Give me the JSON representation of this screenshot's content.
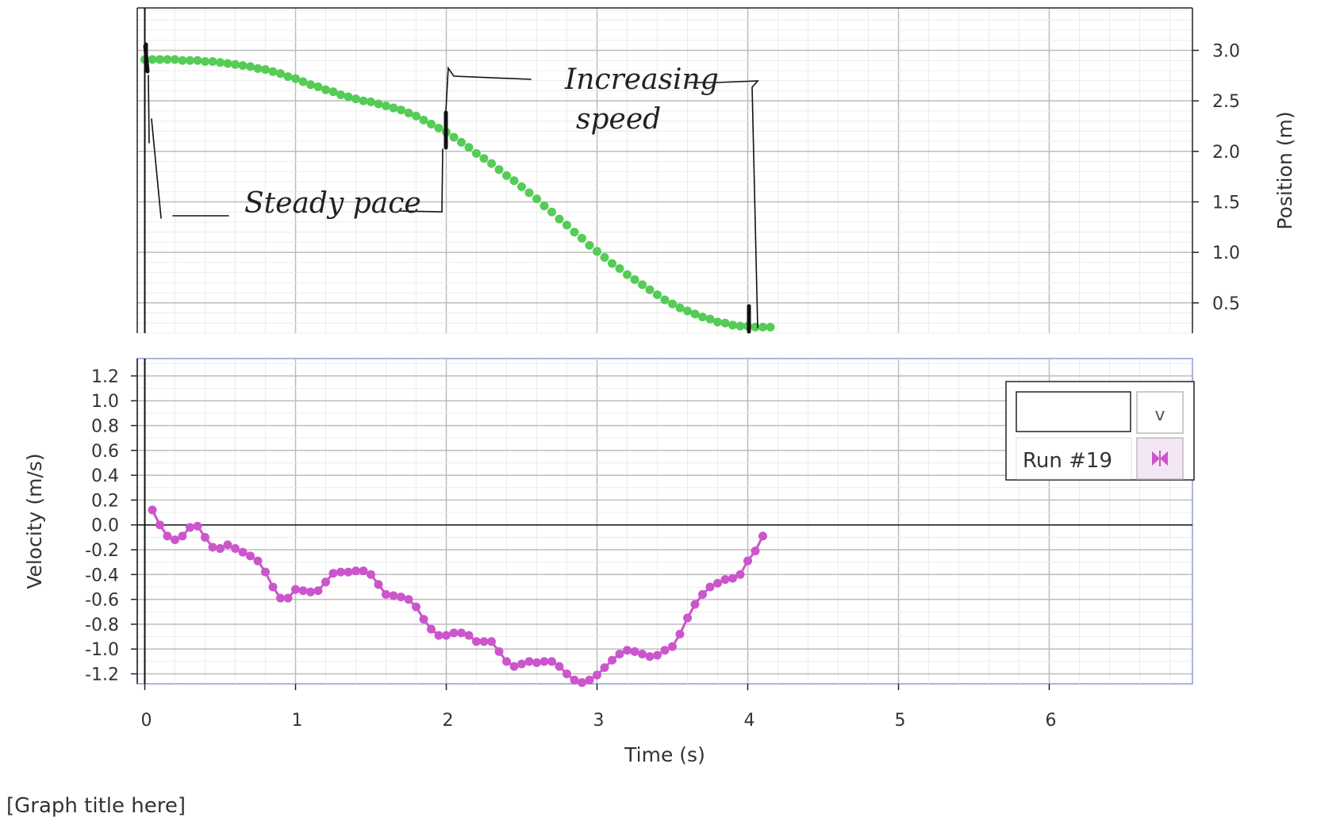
{
  "chart_data": [
    {
      "type": "scatter",
      "ylabel": "Position (m)",
      "xlabel": "Time (s)",
      "xlim": [
        -0.05,
        6.95
      ],
      "ylim": [
        0.2,
        3.42
      ],
      "yticks": [
        "0.5",
        "1.0",
        "1.5",
        "2.0",
        "2.5",
        "3.0"
      ],
      "ytick_values": [
        0.5,
        1.0,
        1.5,
        2.0,
        2.5,
        3.0
      ],
      "y_axis_side": "right",
      "grid": true,
      "series": [
        {
          "color": "#55cc55",
          "x": [
            0.0,
            0.05,
            0.1,
            0.15,
            0.2,
            0.25,
            0.3,
            0.35,
            0.4,
            0.45,
            0.5,
            0.55,
            0.6,
            0.65,
            0.7,
            0.75,
            0.8,
            0.85,
            0.9,
            0.95,
            1.0,
            1.05,
            1.1,
            1.15,
            1.2,
            1.25,
            1.3,
            1.35,
            1.4,
            1.45,
            1.5,
            1.55,
            1.6,
            1.65,
            1.7,
            1.75,
            1.8,
            1.85,
            1.9,
            1.95,
            2.0,
            2.05,
            2.1,
            2.15,
            2.2,
            2.25,
            2.3,
            2.35,
            2.4,
            2.45,
            2.5,
            2.55,
            2.6,
            2.65,
            2.7,
            2.75,
            2.8,
            2.85,
            2.9,
            2.95,
            3.0,
            3.05,
            3.1,
            3.15,
            3.2,
            3.25,
            3.3,
            3.35,
            3.4,
            3.45,
            3.5,
            3.55,
            3.6,
            3.65,
            3.7,
            3.75,
            3.8,
            3.85,
            3.9,
            3.95,
            4.0,
            4.05,
            4.1,
            4.15
          ],
          "y": [
            2.91,
            2.91,
            2.91,
            2.91,
            2.91,
            2.9,
            2.9,
            2.9,
            2.89,
            2.89,
            2.88,
            2.87,
            2.86,
            2.85,
            2.84,
            2.82,
            2.81,
            2.79,
            2.77,
            2.74,
            2.72,
            2.69,
            2.66,
            2.64,
            2.61,
            2.59,
            2.56,
            2.54,
            2.52,
            2.5,
            2.49,
            2.47,
            2.45,
            2.43,
            2.41,
            2.38,
            2.35,
            2.31,
            2.27,
            2.23,
            2.19,
            2.14,
            2.09,
            2.04,
            1.98,
            1.93,
            1.88,
            1.82,
            1.76,
            1.71,
            1.65,
            1.59,
            1.53,
            1.46,
            1.4,
            1.33,
            1.27,
            1.2,
            1.14,
            1.07,
            1.01,
            0.95,
            0.89,
            0.84,
            0.78,
            0.73,
            0.68,
            0.63,
            0.58,
            0.53,
            0.49,
            0.45,
            0.42,
            0.39,
            0.36,
            0.34,
            0.31,
            0.3,
            0.28,
            0.27,
            0.27,
            0.26,
            0.26,
            0.26
          ]
        }
      ],
      "annotations": [
        {
          "text": "Steady pace"
        },
        {
          "text": "Increasing"
        },
        {
          "text": "speed"
        }
      ]
    },
    {
      "type": "line",
      "ylabel": "Velocity (m/s)",
      "xlabel": "Time (s)",
      "xlim": [
        -0.05,
        6.95
      ],
      "ylim": [
        -1.28,
        1.34
      ],
      "xticks": [
        "0",
        "1",
        "2",
        "3",
        "4",
        "5",
        "6"
      ],
      "xtick_values": [
        0,
        1,
        2,
        3,
        4,
        5,
        6
      ],
      "yticks": [
        "1.2",
        "1.0",
        "0.8",
        "0.6",
        "0.4",
        "0.2",
        "0.0",
        "-0.2",
        "-0.4",
        "-0.6",
        "-0.8",
        "-1.0",
        "-1.2"
      ],
      "ytick_values": [
        1.2,
        1.0,
        0.8,
        0.6,
        0.4,
        0.2,
        0.0,
        -0.2,
        -0.4,
        -0.6,
        -0.8,
        -1.0,
        -1.2
      ],
      "grid": true,
      "series": [
        {
          "name": "Run #19",
          "color": "#cc55cc",
          "x": [
            0.05,
            0.1,
            0.15,
            0.2,
            0.25,
            0.3,
            0.35,
            0.4,
            0.45,
            0.5,
            0.55,
            0.6,
            0.65,
            0.7,
            0.75,
            0.8,
            0.85,
            0.9,
            0.95,
            1.0,
            1.05,
            1.1,
            1.15,
            1.2,
            1.25,
            1.3,
            1.35,
            1.4,
            1.45,
            1.5,
            1.55,
            1.6,
            1.65,
            1.7,
            1.75,
            1.8,
            1.85,
            1.9,
            1.95,
            2.0,
            2.05,
            2.1,
            2.15,
            2.2,
            2.25,
            2.3,
            2.35,
            2.4,
            2.45,
            2.5,
            2.55,
            2.6,
            2.65,
            2.7,
            2.75,
            2.8,
            2.85,
            2.9,
            2.95,
            3.0,
            3.05,
            3.1,
            3.15,
            3.2,
            3.25,
            3.3,
            3.35,
            3.4,
            3.45,
            3.5,
            3.55,
            3.6,
            3.65,
            3.7,
            3.75,
            3.8,
            3.85,
            3.9,
            3.95,
            4.0,
            4.05,
            4.1
          ],
          "y": [
            0.12,
            0.0,
            -0.09,
            -0.12,
            -0.09,
            -0.02,
            -0.01,
            -0.1,
            -0.18,
            -0.19,
            -0.16,
            -0.19,
            -0.22,
            -0.25,
            -0.29,
            -0.38,
            -0.5,
            -0.59,
            -0.59,
            -0.52,
            -0.53,
            -0.54,
            -0.53,
            -0.46,
            -0.39,
            -0.38,
            -0.38,
            -0.37,
            -0.37,
            -0.4,
            -0.48,
            -0.56,
            -0.57,
            -0.58,
            -0.6,
            -0.66,
            -0.76,
            -0.84,
            -0.89,
            -0.89,
            -0.87,
            -0.87,
            -0.89,
            -0.94,
            -0.94,
            -0.94,
            -1.02,
            -1.1,
            -1.14,
            -1.12,
            -1.1,
            -1.11,
            -1.1,
            -1.1,
            -1.14,
            -1.2,
            -1.25,
            -1.27,
            -1.25,
            -1.21,
            -1.15,
            -1.09,
            -1.04,
            -1.01,
            -1.02,
            -1.04,
            -1.06,
            -1.05,
            -1.01,
            -0.98,
            -0.88,
            -0.75,
            -0.64,
            -0.56,
            -0.5,
            -0.47,
            -0.44,
            -0.43,
            -0.4,
            -0.29,
            -0.21,
            -0.09
          ]
        }
      ]
    }
  ],
  "legend": {
    "input_value": "",
    "dropdown_label": "v",
    "run_label": "Run #19",
    "run_color": "#cc55cc"
  },
  "graph_title": "[Graph title here]"
}
